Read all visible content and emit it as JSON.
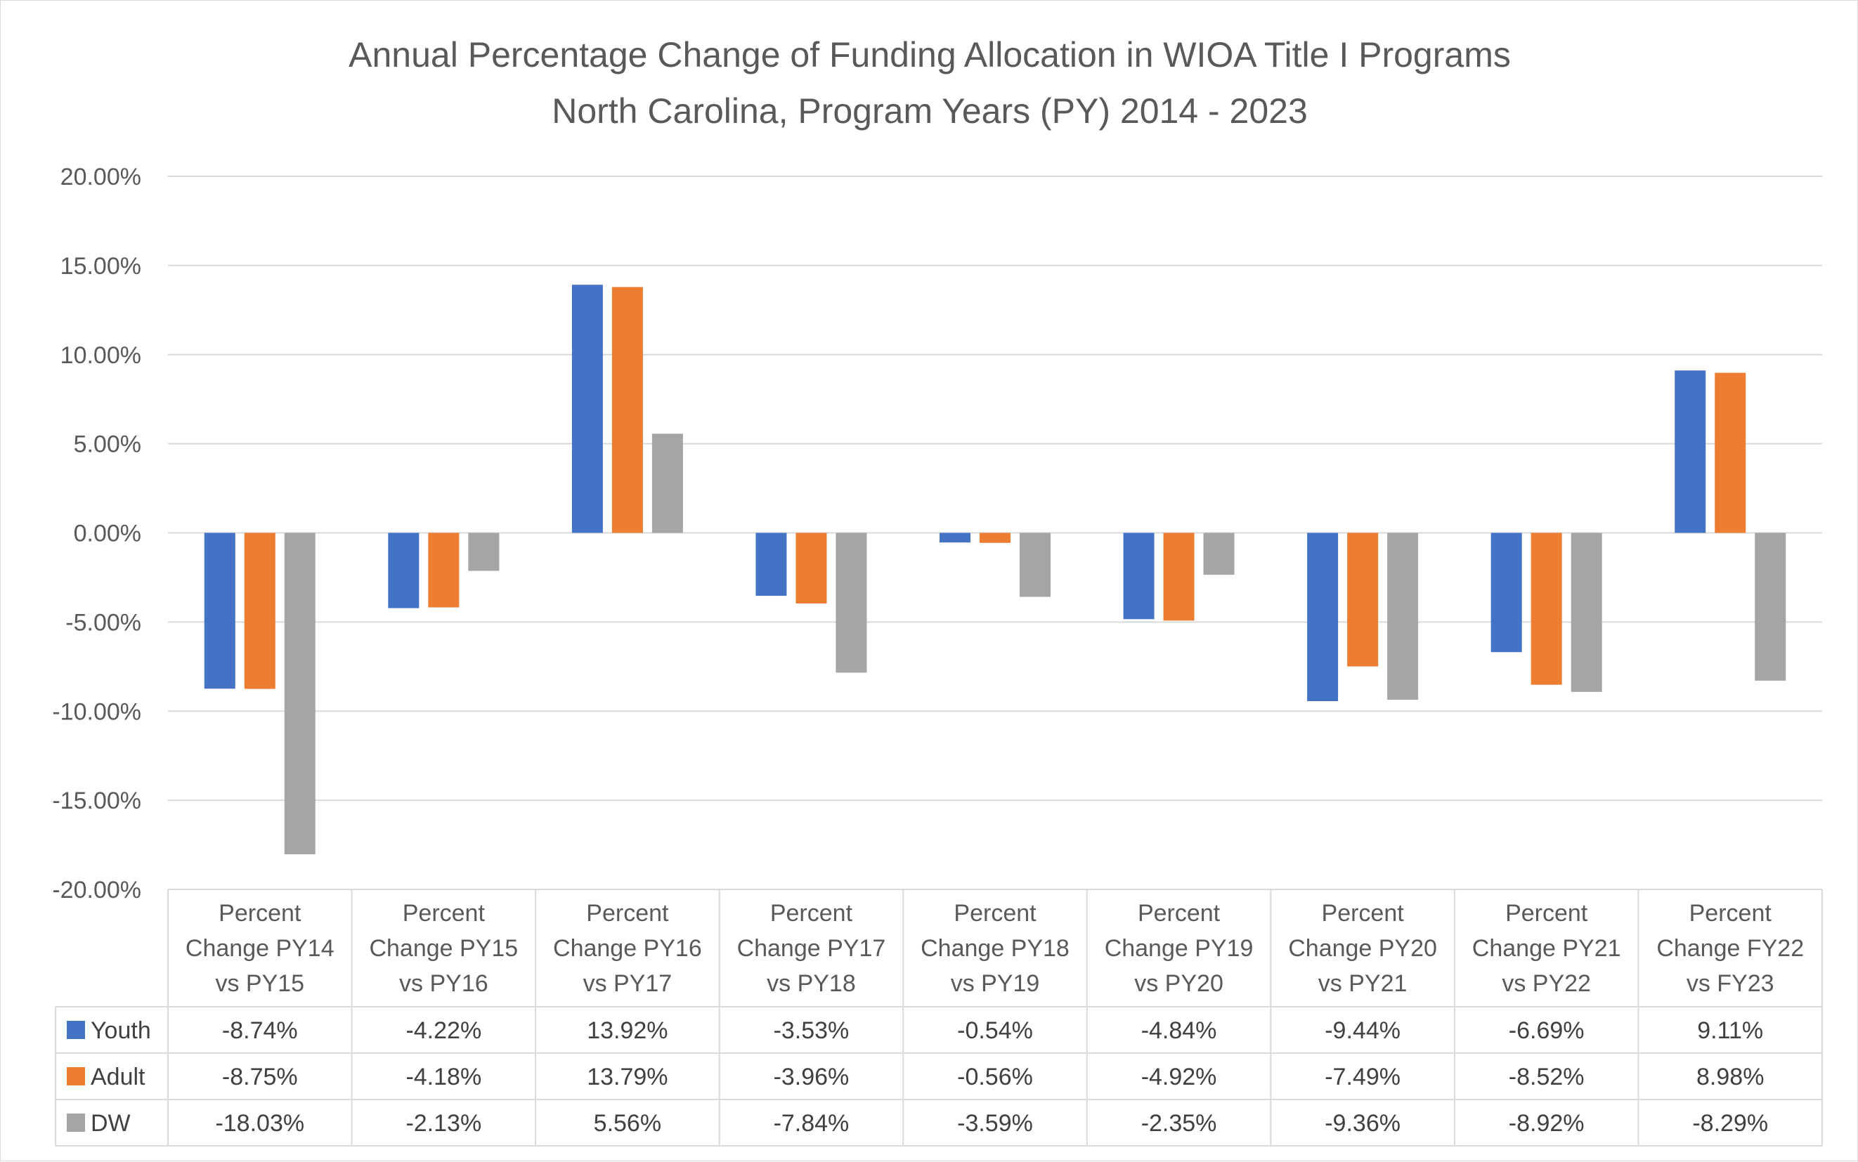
{
  "chart_data": {
    "type": "bar",
    "title": [
      "Annual Percentage Change of Funding Allocation in WIOA Title I Programs",
      "North Carolina, Program Years (PY) 2014 - 2023"
    ],
    "categories": [
      [
        "Percent",
        "Change PY14",
        "vs PY15"
      ],
      [
        "Percent",
        "Change PY15",
        "vs PY16"
      ],
      [
        "Percent",
        "Change PY16",
        "vs PY17"
      ],
      [
        "Percent",
        "Change PY17",
        "vs PY18"
      ],
      [
        "Percent",
        "Change PY18",
        "vs PY19"
      ],
      [
        "Percent",
        "Change PY19",
        "vs PY20"
      ],
      [
        "Percent",
        "Change PY20",
        "vs PY21"
      ],
      [
        "Percent",
        "Change PY21",
        "vs PY22"
      ],
      [
        "Percent",
        "Change FY22",
        "vs FY23"
      ]
    ],
    "series": [
      {
        "name": "Youth",
        "color": "#4472c4",
        "values": [
          -8.74,
          -4.22,
          13.92,
          -3.53,
          -0.54,
          -4.84,
          -9.44,
          -6.69,
          9.11
        ],
        "labels": [
          "-8.74%",
          "-4.22%",
          "13.92%",
          "-3.53%",
          "-0.54%",
          "-4.84%",
          "-9.44%",
          "-6.69%",
          "9.11%"
        ]
      },
      {
        "name": "Adult",
        "color": "#ed7d31",
        "values": [
          -8.75,
          -4.18,
          13.79,
          -3.96,
          -0.56,
          -4.92,
          -7.49,
          -8.52,
          8.98
        ],
        "labels": [
          "-8.75%",
          "-4.18%",
          "13.79%",
          "-3.96%",
          "-0.56%",
          "-4.92%",
          "-7.49%",
          "-8.52%",
          "8.98%"
        ]
      },
      {
        "name": "DW",
        "color": "#a5a5a5",
        "values": [
          -18.03,
          -2.13,
          5.56,
          -7.84,
          -3.59,
          -2.35,
          -9.36,
          -8.92,
          -8.29
        ],
        "labels": [
          "-18.03%",
          "-2.13%",
          "5.56%",
          "-7.84%",
          "-3.59%",
          "-2.35%",
          "-9.36%",
          "-8.92%",
          "-8.29%"
        ]
      }
    ],
    "ylim": [
      -20,
      20
    ],
    "yticks": [
      20,
      15,
      10,
      5,
      0,
      -5,
      -10,
      -15,
      -20
    ],
    "ytick_labels": [
      "20.00%",
      "15.00%",
      "10.00%",
      "5.00%",
      "0.00%",
      "-5.00%",
      "-10.00%",
      "-15.00%",
      "-20.00%"
    ],
    "grid": true,
    "legend": "data-table"
  }
}
